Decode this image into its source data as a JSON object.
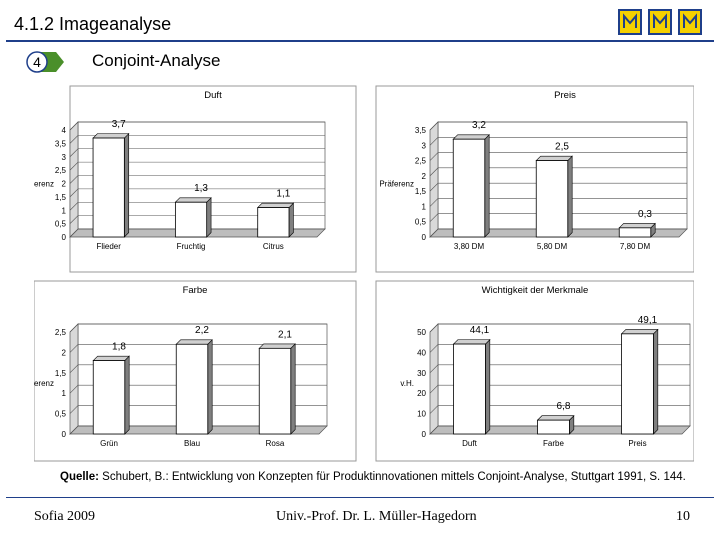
{
  "header": {
    "title": "4.1.2 Imageanalyse",
    "logo_letter": "M"
  },
  "section": {
    "number": "4",
    "subtitle": "Conjoint-Analyse"
  },
  "charts": {
    "ylabel_common": "Präferenz"
  },
  "chart_data": [
    {
      "type": "bar",
      "title": "Duft",
      "ylabel": "Präferenz",
      "categories": [
        "Flieder",
        "Fruchtig",
        "Citrus"
      ],
      "values": [
        3.7,
        1.3,
        1.1
      ],
      "value_labels": [
        "3,7",
        "1,3",
        "1,1"
      ],
      "ylim": [
        0,
        4
      ],
      "yticks": [
        0,
        0.5,
        1,
        1.5,
        2,
        2.5,
        3,
        3.5,
        4
      ],
      "ytick_labels": [
        "0",
        "0,5",
        "1",
        "1,5",
        "2",
        "2,5",
        "3",
        "3,5",
        "4"
      ]
    },
    {
      "type": "bar",
      "title": "Preis",
      "ylabel": "Präferenz",
      "categories": [
        "3,80 DM",
        "5,80 DM",
        "7,80 DM"
      ],
      "values": [
        3.2,
        2.5,
        0.3
      ],
      "value_labels": [
        "3,2",
        "2,5",
        "0,3"
      ],
      "ylim": [
        0,
        3.5
      ],
      "yticks": [
        0,
        0.5,
        1,
        1.5,
        2,
        2.5,
        3,
        3.5
      ],
      "ytick_labels": [
        "0",
        "0,5",
        "1",
        "1,5",
        "2",
        "2,5",
        "3",
        "3,5"
      ]
    },
    {
      "type": "bar",
      "title": "Farbe",
      "ylabel": "Präferenz",
      "categories": [
        "Grün",
        "Blau",
        "Rosa"
      ],
      "values": [
        1.8,
        2.2,
        2.1
      ],
      "value_labels": [
        "1,8",
        "2,2",
        "2,1"
      ],
      "ylim": [
        0,
        2.5
      ],
      "yticks": [
        0,
        0.5,
        1,
        1.5,
        2,
        2.5
      ],
      "ytick_labels": [
        "0",
        "0,5",
        "1",
        "1,5",
        "2",
        "2,5"
      ]
    },
    {
      "type": "bar",
      "title": "Wichtigkeit der Merkmale",
      "ylabel": "v.H.",
      "categories": [
        "Duft",
        "Farbe",
        "Preis"
      ],
      "values": [
        44.1,
        6.8,
        49.1
      ],
      "value_labels": [
        "44,1",
        "6,8",
        "49,1"
      ],
      "ylim": [
        0,
        50
      ],
      "yticks": [
        0,
        10,
        20,
        30,
        40,
        50
      ],
      "ytick_labels": [
        "0",
        "10",
        "20",
        "30",
        "40",
        "50"
      ]
    }
  ],
  "source": {
    "label": "Quelle:",
    "text": " Schubert, B.: Entwicklung von Konzepten für Produktinnovationen mittels Conjoint-Analyse, Stuttgart 1991, S. 144."
  },
  "footer": {
    "left": "Sofia 2009",
    "center": "Univ.-Prof. Dr. L. Müller-Hagedorn",
    "page": "10"
  },
  "colors": {
    "accent": "#1f3f8a",
    "logo_yellow": "#f5d000",
    "badge_green": "#4a8f2a"
  }
}
